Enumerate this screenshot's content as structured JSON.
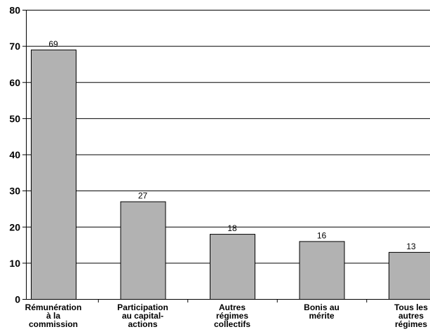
{
  "chart_data": {
    "type": "bar",
    "categories": [
      [
        "Rémunération",
        "à la",
        "commission"
      ],
      [
        "Participation",
        "au capital-",
        "actions"
      ],
      [
        "Autres",
        "régimes",
        "collectifs"
      ],
      [
        "Bonis au",
        "mérite"
      ],
      [
        "Tous les",
        "autres",
        "régimes"
      ]
    ],
    "values": [
      69,
      27,
      18,
      16,
      13
    ],
    "title": "",
    "xlabel": "",
    "ylabel": "",
    "ylim": [
      0,
      80
    ],
    "yticks": [
      0,
      10,
      20,
      30,
      40,
      50,
      60,
      70,
      80
    ],
    "grid": true,
    "legend": "none",
    "bar_color": "#b2b2b2",
    "bar_edge_color": "#000000"
  }
}
